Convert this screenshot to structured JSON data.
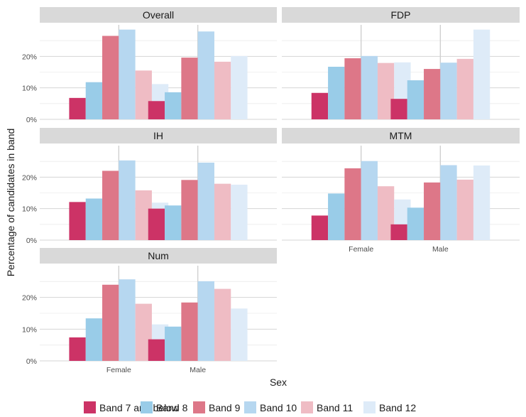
{
  "chart_data": {
    "type": "bar",
    "facet_layout": "wrap",
    "categories": [
      "Female",
      "Male"
    ],
    "xlabel": "Sex",
    "ylabel": "Percentage of candidates in band",
    "ylim": [
      0,
      30
    ],
    "yticks": [
      0,
      10,
      20
    ],
    "ytick_labels": [
      "0%",
      "10%",
      "20%"
    ],
    "grid": true,
    "legend_position": "bottom",
    "series": [
      {
        "name": "Band 7 and below",
        "color": "#cc3366"
      },
      {
        "name": "Band 8",
        "color": "#99cce8"
      },
      {
        "name": "Band 9",
        "color": "#dd7788"
      },
      {
        "name": "Band 10",
        "color": "#b6d7f0"
      },
      {
        "name": "Band 11",
        "color": "#efbcc4"
      },
      {
        "name": "Band 12",
        "color": "#deebf8"
      }
    ],
    "panels": [
      {
        "title": "Overall",
        "values": {
          "Female": [
            6.8,
            11.8,
            26.5,
            28.5,
            15.5,
            11.2
          ],
          "Male": [
            5.8,
            8.6,
            19.6,
            27.9,
            18.3,
            20.1
          ]
        }
      },
      {
        "title": "FDP",
        "values": {
          "Female": [
            8.4,
            16.7,
            19.4,
            20.1,
            17.9,
            18.1
          ],
          "Male": [
            6.5,
            12.4,
            16.0,
            18.0,
            19.2,
            28.5
          ]
        }
      },
      {
        "title": "IH",
        "values": {
          "Female": [
            12.1,
            13.2,
            22.0,
            25.3,
            15.8,
            11.9
          ],
          "Male": [
            10.0,
            11.0,
            19.1,
            24.6,
            17.9,
            17.6
          ]
        }
      },
      {
        "title": "MTM",
        "values": {
          "Female": [
            7.8,
            14.8,
            22.8,
            25.1,
            17.1,
            12.9
          ],
          "Male": [
            5.0,
            10.3,
            18.3,
            23.8,
            19.2,
            23.7
          ]
        }
      },
      {
        "title": "Num",
        "values": {
          "Female": [
            7.4,
            13.4,
            24.0,
            25.7,
            18.0,
            11.5
          ],
          "Male": [
            6.8,
            10.8,
            18.4,
            25.1,
            22.7,
            16.5
          ]
        }
      }
    ]
  }
}
